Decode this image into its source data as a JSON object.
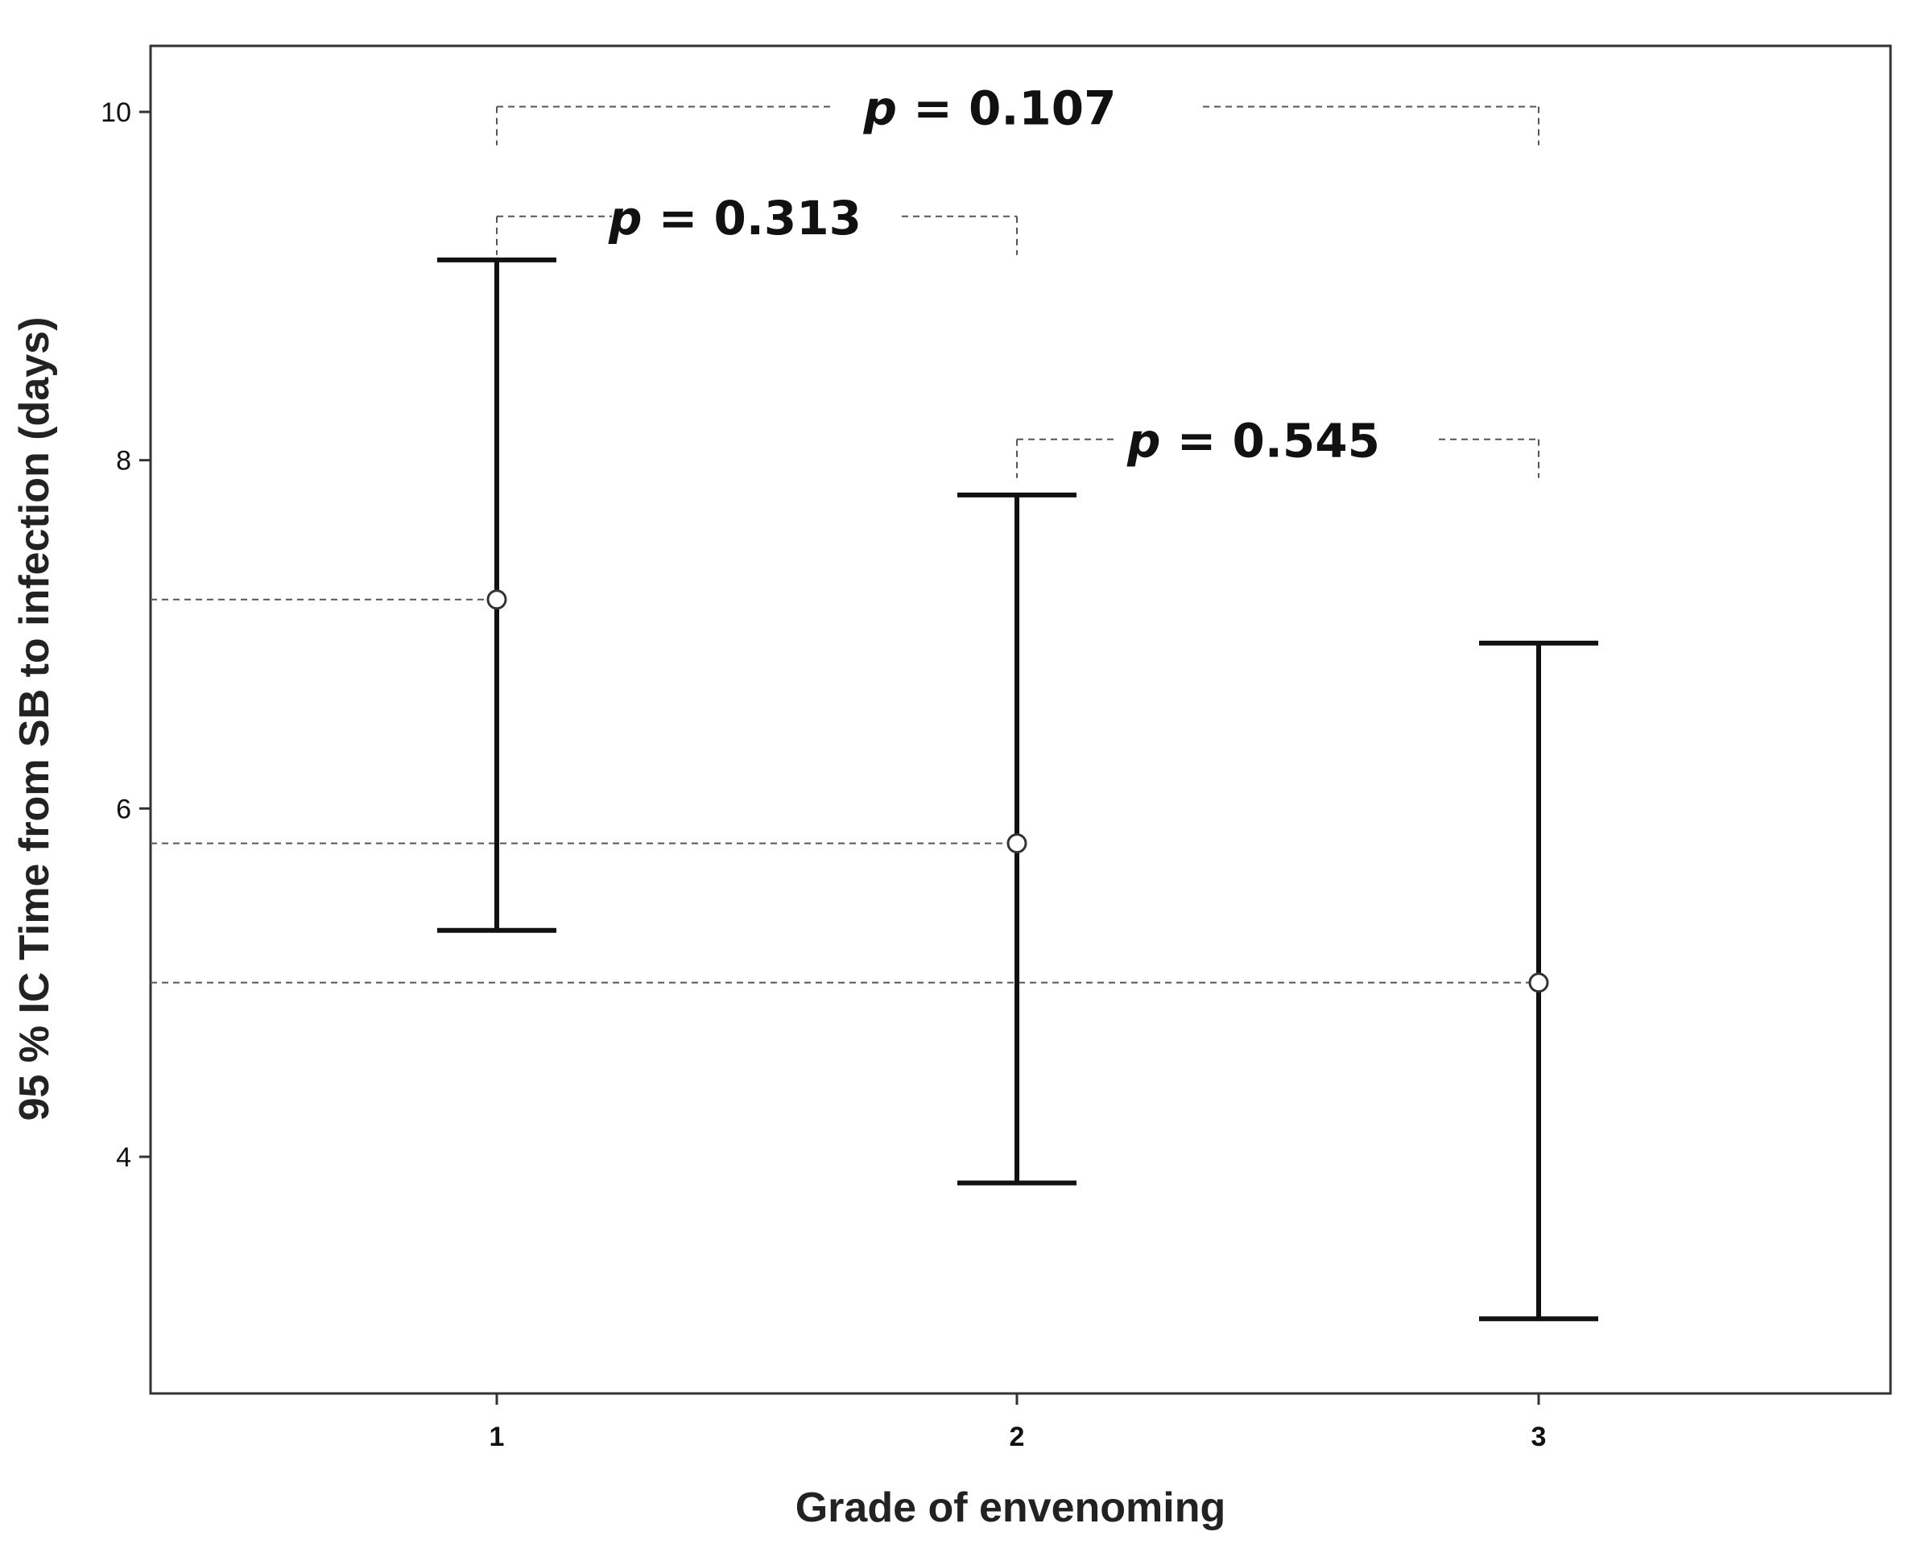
{
  "chart_data": {
    "type": "errorbar",
    "xlabel": "Grade of envenoming",
    "ylabel": "95 % IC Time from SB to infection (days)",
    "categories": [
      "1",
      "2",
      "3"
    ],
    "yticks": [
      "4",
      "6",
      "8",
      "10"
    ],
    "ylim": [
      2.7,
      10.4
    ],
    "grid": false,
    "points": [
      {
        "category": "1",
        "mean": 7.2,
        "lower": 5.3,
        "upper": 9.15
      },
      {
        "category": "2",
        "mean": 5.8,
        "lower": 3.85,
        "upper": 7.8
      },
      {
        "category": "3",
        "mean": 5.0,
        "lower": 3.07,
        "upper": 6.95
      }
    ],
    "comparisons": [
      {
        "groups": [
          "1",
          "3"
        ],
        "p_label": "p",
        "p_rest": " = 0.107",
        "level": 10.03
      },
      {
        "groups": [
          "1",
          "2"
        ],
        "p_label": "p",
        "p_rest": " = 0.313",
        "level": 9.4
      },
      {
        "groups": [
          "2",
          "3"
        ],
        "p_label": "p",
        "p_rest": " = 0.545",
        "level": 8.12
      }
    ]
  }
}
